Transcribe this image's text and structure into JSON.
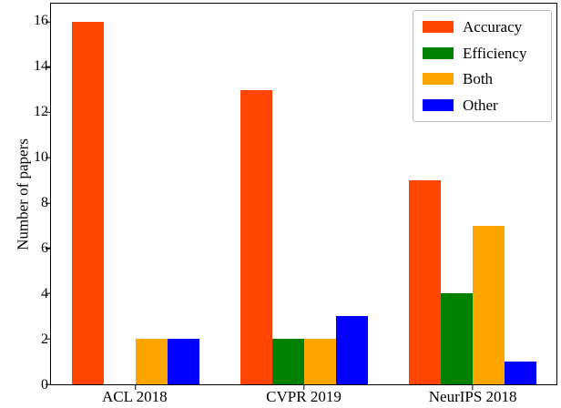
{
  "chart_data": {
    "type": "bar",
    "title": "",
    "xlabel": "",
    "ylabel": "Number of papers",
    "categories": [
      "ACL 2018",
      "CVPR 2019",
      "NeurIPS 2018"
    ],
    "series": [
      {
        "name": "Accuracy",
        "color": "#FF4500",
        "values": [
          16,
          13,
          9
        ]
      },
      {
        "name": "Efficiency",
        "color": "#008000",
        "values": [
          0,
          2,
          4
        ]
      },
      {
        "name": "Both",
        "color": "#FFA500",
        "values": [
          2,
          2,
          7
        ]
      },
      {
        "name": "Other",
        "color": "#0000FF",
        "values": [
          2,
          3,
          1
        ]
      }
    ],
    "yticks": [
      0,
      2,
      4,
      6,
      8,
      10,
      12,
      14,
      16
    ],
    "ylim": [
      0,
      16.8
    ],
    "grid": false,
    "legend_position": "upper right"
  }
}
